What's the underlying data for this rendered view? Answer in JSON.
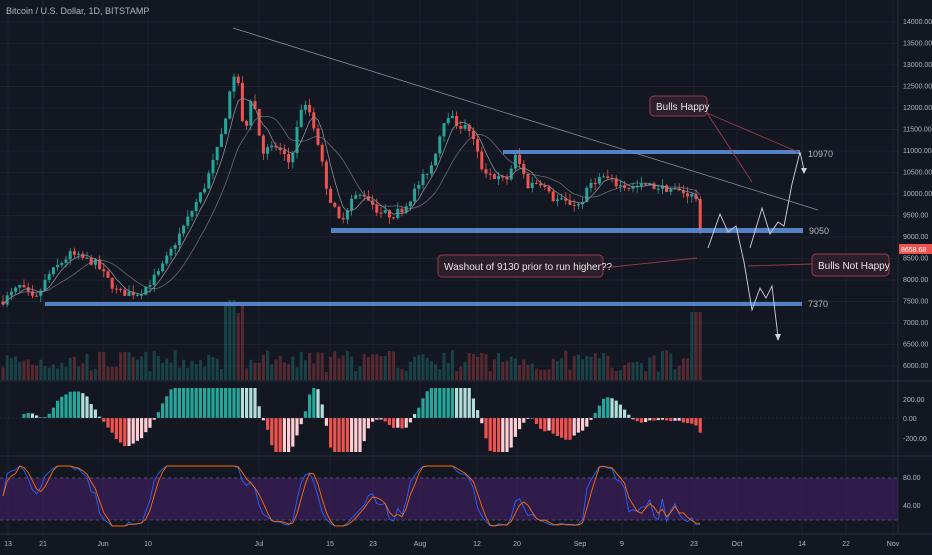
{
  "chart_title": "Bitcoin / U.S. Dollar, 1D, BITSTAMP",
  "colors": {
    "background": "#131722",
    "up": "#26a69a",
    "down": "#ef5350",
    "level": "#5b8ed6",
    "callout_bg": "#2a1f2a",
    "callout_border": "#9b3b4c",
    "rsi_band": "#3c1f5c"
  },
  "price_axis": {
    "labels": [
      "14000.00",
      "13500.00",
      "13000.00",
      "12500.00",
      "12000.00",
      "11500.00",
      "11000.00",
      "10500.00",
      "10000.00",
      "9500.00",
      "9000.00",
      "8500.00",
      "8000.00",
      "7500.00",
      "7000.00",
      "6500.00",
      "6000.00"
    ],
    "current_price": "8658.68"
  },
  "macd_axis": {
    "labels": [
      "200.00",
      "0.00",
      "-200.00"
    ]
  },
  "rsi_axis": {
    "labels": [
      "80.00",
      "40.00"
    ]
  },
  "time_axis": {
    "labels": [
      "13",
      "21",
      "Jun",
      "10",
      "Jul",
      "15",
      "23",
      "Aug",
      "12",
      "20",
      "Sep",
      "9",
      "23",
      "Oct",
      "14",
      "22",
      "Nov"
    ]
  },
  "levels": [
    {
      "label": "10970",
      "value": 10970
    },
    {
      "label": "9050",
      "value": 9050
    },
    {
      "label": "7370",
      "value": 7370
    }
  ],
  "callouts": {
    "bulls_happy": "Bulls Happy",
    "bulls_not_happy": "Bulls Not Happy",
    "washout": "Washout of 9130 prior to run higher??"
  },
  "chart_data": {
    "type": "candlestick",
    "title": "Bitcoin / U.S. Dollar, 1D, BITSTAMP",
    "y_range": [
      5800,
      14200
    ],
    "key_closes": [
      {
        "date": "May 13",
        "close": 7800
      },
      {
        "date": "May 21",
        "close": 7950
      },
      {
        "date": "Jun 1",
        "close": 8550
      },
      {
        "date": "Jun 10",
        "close": 7950
      },
      {
        "date": "Jun 26",
        "close": 13000
      },
      {
        "date": "Jul 1",
        "close": 11600
      },
      {
        "date": "Jul 10",
        "close": 12300
      },
      {
        "date": "Jul 17",
        "close": 9600
      },
      {
        "date": "Aug 1",
        "close": 10300
      },
      {
        "date": "Aug 6",
        "close": 11900
      },
      {
        "date": "Aug 15",
        "close": 10300
      },
      {
        "date": "Aug 20",
        "close": 10900
      },
      {
        "date": "Sep 1",
        "close": 9700
      },
      {
        "date": "Sep 9",
        "close": 10400
      },
      {
        "date": "Sep 23",
        "close": 8658.68
      }
    ]
  }
}
